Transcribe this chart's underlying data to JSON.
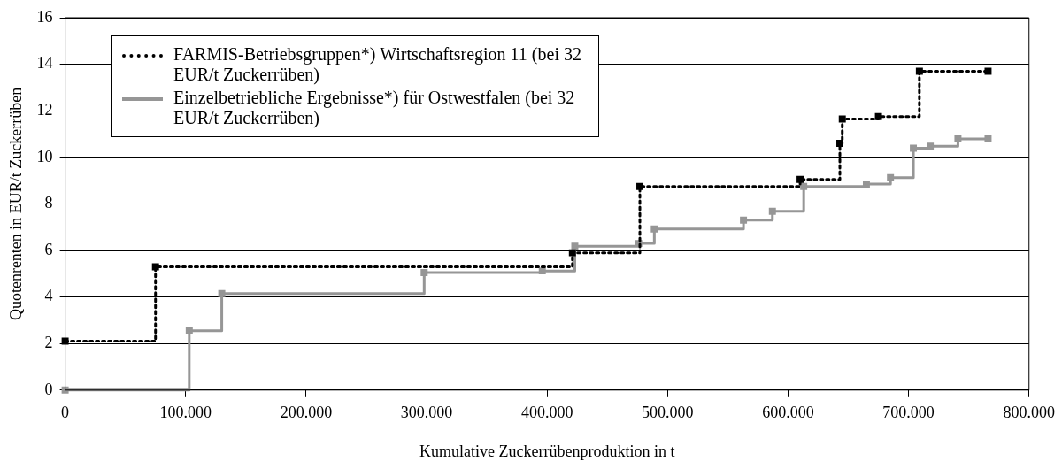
{
  "chart_data": {
    "type": "step",
    "xlabel": "Kumulative Zuckerrübenproduktion in t",
    "ylabel": "Quotenrenten in EUR/t Zuckerrüben",
    "series": [
      {
        "name": "FARMIS-Betriebsgruppen*) Wirtschaftsregion 11 (bei 32 EUR/t Zuckerrüben)",
        "color": "#000000",
        "line_style": "dotted",
        "x": [
          0,
          75000,
          421000,
          477000,
          610000,
          643000,
          645000,
          675000,
          709000,
          766000
        ],
        "values": [
          2.1,
          5.3,
          5.9,
          8.75,
          9.05,
          10.6,
          11.65,
          11.75,
          13.7,
          13.7
        ]
      },
      {
        "name": "Einzelbetriebliche Ergebnisse*) für Ostwestfalen (bei 32 EUR/t Zuckerrüben)",
        "color": "#969696",
        "line_style": "solid",
        "x": [
          0,
          103000,
          130000,
          298000,
          396000,
          423000,
          476000,
          489000,
          563000,
          587000,
          613000,
          665000,
          685000,
          704000,
          718000,
          741000,
          766000
        ],
        "values": [
          0,
          2.55,
          4.15,
          5.05,
          5.12,
          6.18,
          6.3,
          6.92,
          7.3,
          7.68,
          8.75,
          8.85,
          9.13,
          10.39,
          10.48,
          10.79,
          10.79
        ]
      }
    ],
    "xlim": [
      0,
      800000
    ],
    "xticks": [
      {
        "value": 0,
        "label": "0"
      },
      {
        "value": 100000,
        "label": "100.000"
      },
      {
        "value": 200000,
        "label": "200.000"
      },
      {
        "value": 300000,
        "label": "300.000"
      },
      {
        "value": 400000,
        "label": "400.000"
      },
      {
        "value": 500000,
        "label": "500.000"
      },
      {
        "value": 600000,
        "label": "600.000"
      },
      {
        "value": 700000,
        "label": "700.000"
      },
      {
        "value": 800000,
        "label": "800.000"
      }
    ],
    "ylim": [
      0,
      16
    ],
    "yticks": [
      0,
      2,
      4,
      6,
      8,
      10,
      12,
      14,
      16
    ],
    "grid": "y",
    "legend": "top left",
    "marker": "square"
  }
}
